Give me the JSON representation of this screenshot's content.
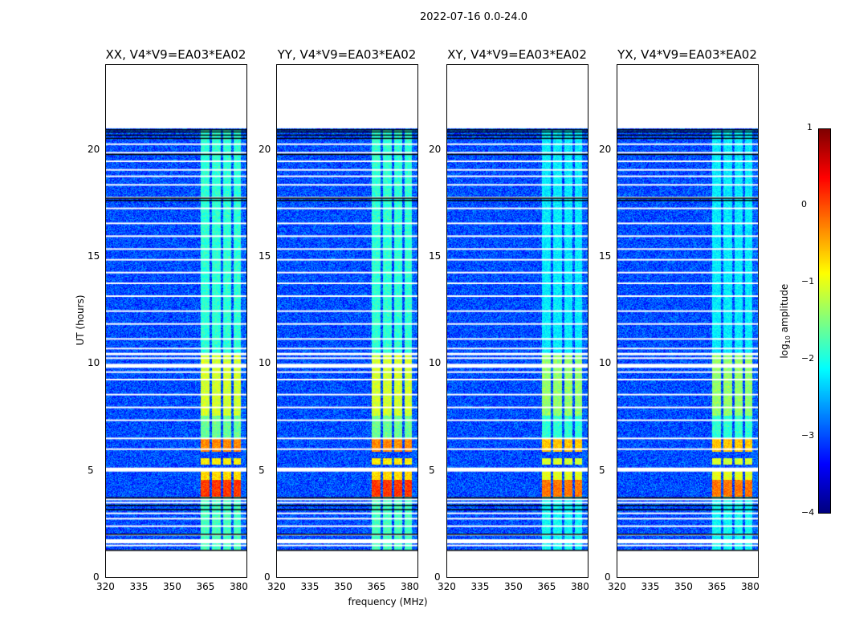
{
  "chart_data": {
    "type": "heatmap",
    "title": "2022-07-16 0.0-24.0",
    "xlabel": "frequency (MHz)",
    "ylabel": "UT (hours)",
    "xlim": [
      320,
      384
    ],
    "ylim": [
      0,
      24
    ],
    "xticks": [
      "320",
      "335",
      "350",
      "365",
      "380"
    ],
    "yticks": [
      "0",
      "5",
      "10",
      "15",
      "20"
    ],
    "panels": [
      {
        "title": "XX, V4*V9=EA03*EA02"
      },
      {
        "title": "YY, V4*V9=EA03*EA02"
      },
      {
        "title": "XY, V4*V9=EA03*EA02"
      },
      {
        "title": "YX, V4*V9=EA03*EA02"
      }
    ],
    "colorbar": {
      "label": "log10 amplitude",
      "label_main": "log",
      "label_sub": "10",
      "label_end": " amplitude",
      "range": [
        -4,
        1
      ],
      "ticks": [
        "1",
        "0",
        "−1",
        "−2",
        "−3",
        "−4"
      ],
      "colormap": "jet"
    },
    "data_time_range": [
      1.3,
      21.0
    ],
    "background_level": -3.0,
    "rfi_band_mhz": [
      [
        363,
        367
      ],
      [
        368,
        372
      ],
      [
        373,
        376.5
      ],
      [
        377.5,
        381
      ]
    ],
    "bright_segments": [
      {
        "t": [
          3.8,
          4.6
        ],
        "level": 0.1
      },
      {
        "t": [
          4.6,
          5.0
        ],
        "level": -0.7
      },
      {
        "t": [
          5.3,
          5.6
        ],
        "level": -0.8
      },
      {
        "t": [
          5.9,
          6.5
        ],
        "level": -0.3
      },
      {
        "t": [
          6.5,
          7.6
        ],
        "level": -1.6
      },
      {
        "t": [
          7.6,
          10.5
        ],
        "level": -1.1
      },
      {
        "t": [
          10.5,
          21.0
        ],
        "level": -1.9
      },
      {
        "t": [
          1.3,
          3.8
        ],
        "level": -1.8
      }
    ],
    "white_gaps_hours": [
      1.55,
      1.8,
      2.05,
      2.45,
      2.8,
      3.05,
      3.55,
      3.7,
      5.15,
      6.55,
      6.05,
      7.4,
      8.0,
      8.6,
      9.3,
      9.65,
      10.0,
      10.3,
      10.75,
      11.2,
      11.9,
      12.5,
      13.2,
      13.8,
      14.3,
      14.9,
      15.4,
      16.0,
      16.6,
      17.3,
      17.8,
      18.4,
      18.8,
      19.1,
      19.5,
      19.9,
      20.3
    ],
    "black_lines_hours": [
      1.35,
      2.1,
      3.25,
      3.45,
      3.8,
      17.7,
      17.8,
      19.85,
      20.6,
      20.75,
      20.9,
      21.0
    ]
  }
}
